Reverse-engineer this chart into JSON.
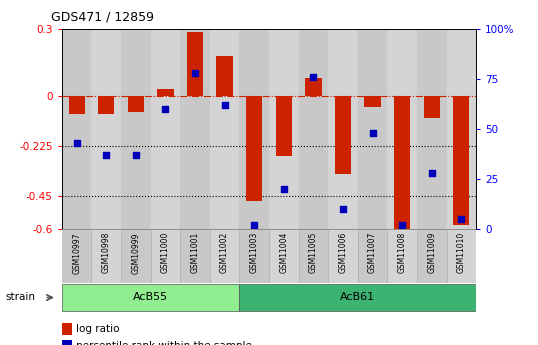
{
  "title": "GDS471 / 12859",
  "samples": [
    "GSM10997",
    "GSM10998",
    "GSM10999",
    "GSM11000",
    "GSM11001",
    "GSM11002",
    "GSM11003",
    "GSM11004",
    "GSM11005",
    "GSM11006",
    "GSM11007",
    "GSM11008",
    "GSM11009",
    "GSM11010"
  ],
  "log_ratio": [
    -0.08,
    -0.08,
    -0.07,
    0.03,
    0.29,
    0.18,
    -0.47,
    -0.27,
    0.08,
    -0.35,
    -0.05,
    -0.6,
    -0.1,
    -0.58
  ],
  "percentile": [
    43,
    37,
    37,
    60,
    78,
    62,
    2,
    20,
    76,
    10,
    48,
    2,
    28,
    5
  ],
  "ylim_left": [
    -0.6,
    0.3
  ],
  "ylim_right": [
    0,
    100
  ],
  "yticks_left": [
    0.3,
    0,
    -0.225,
    -0.45,
    -0.6
  ],
  "yticks_right": [
    100,
    75,
    50,
    25,
    0
  ],
  "hlines": [
    -0.225,
    -0.45
  ],
  "dashed_hline": 0,
  "groups": [
    {
      "label": "AcB55",
      "start": 0,
      "end": 5,
      "color": "#90EE90"
    },
    {
      "label": "AcB61",
      "start": 6,
      "end": 13,
      "color": "#3CB371"
    }
  ],
  "bar_color": "#CC2200",
  "dot_color": "#0000BB",
  "dot_size": 20,
  "bar_width": 0.55,
  "col_bg_even": "#c8c8c8",
  "col_bg_odd": "#d4d4d4",
  "plot_bg": "#e8e8e8"
}
